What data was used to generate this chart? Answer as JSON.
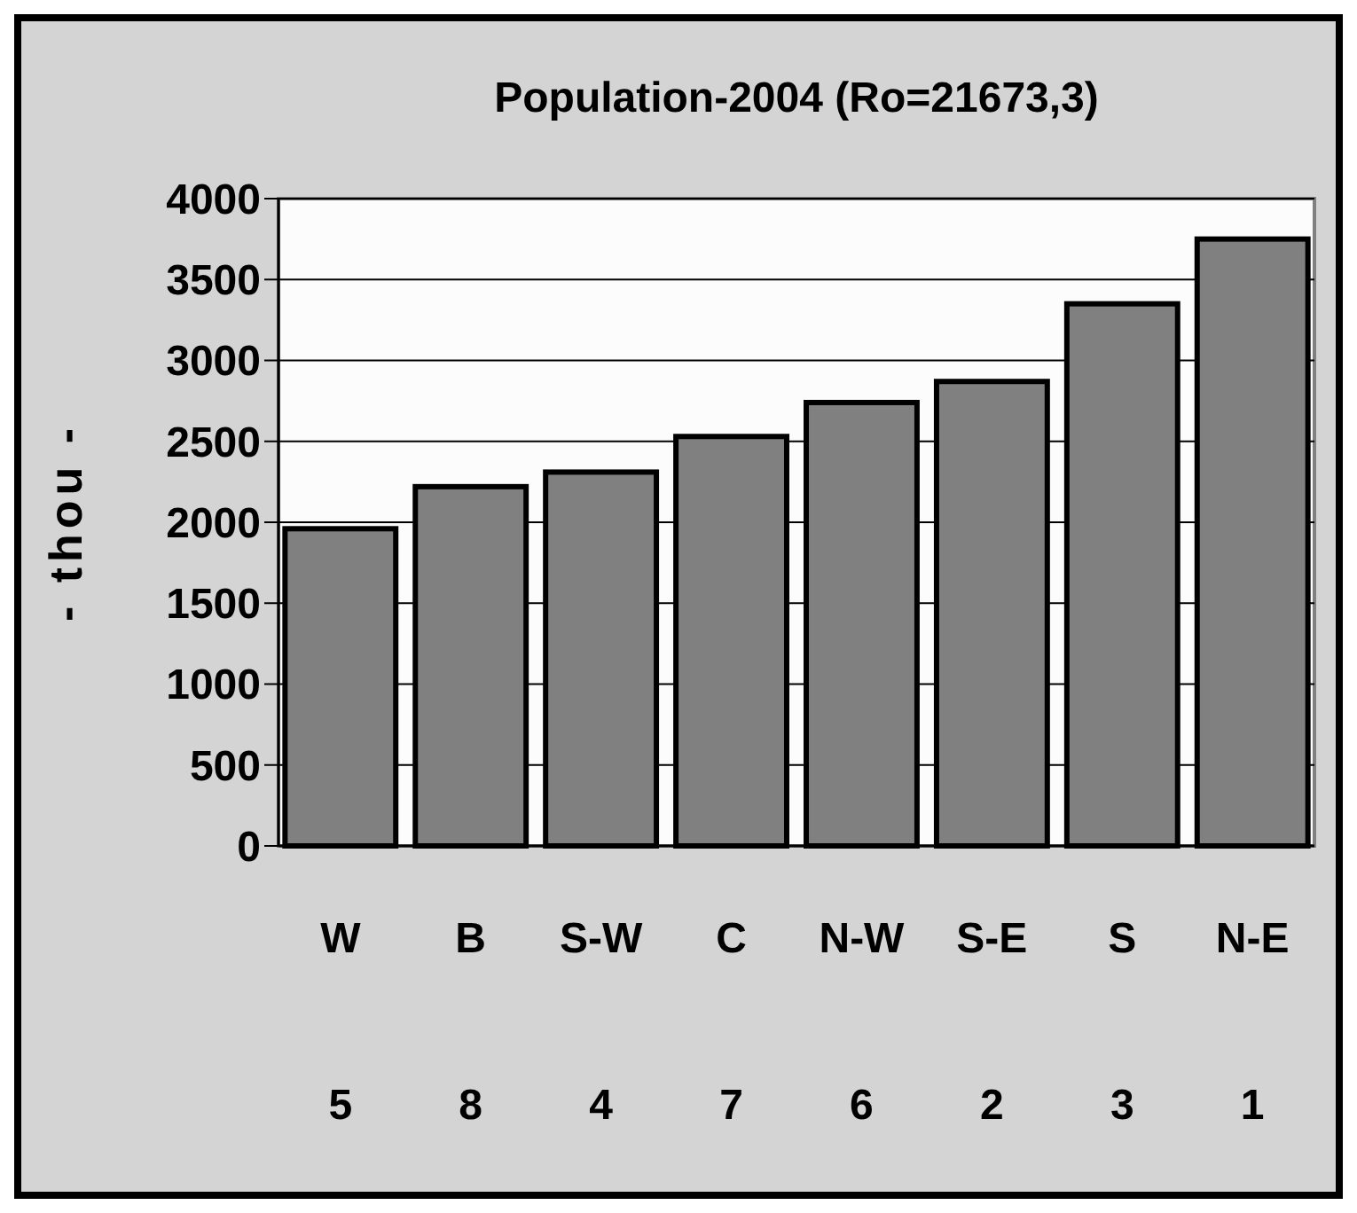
{
  "chart_data": {
    "type": "bar",
    "title": "Population-2004 (Ro=21673,3)",
    "ylabel": "- thou -",
    "categories": [
      "W\n5",
      "B\n8",
      "S-W\n4",
      "C\n7",
      "N-W\n6",
      "S-E\n2",
      "S\n3",
      "N-E\n1"
    ],
    "values": [
      1960,
      2220,
      2310,
      2530,
      2740,
      2870,
      3350,
      3750
    ],
    "color": "#808080",
    "ylim": [
      0,
      4000
    ],
    "yticks": [
      0,
      500,
      1000,
      1500,
      2000,
      2500,
      3000,
      3500,
      4000
    ],
    "grid": "y"
  }
}
